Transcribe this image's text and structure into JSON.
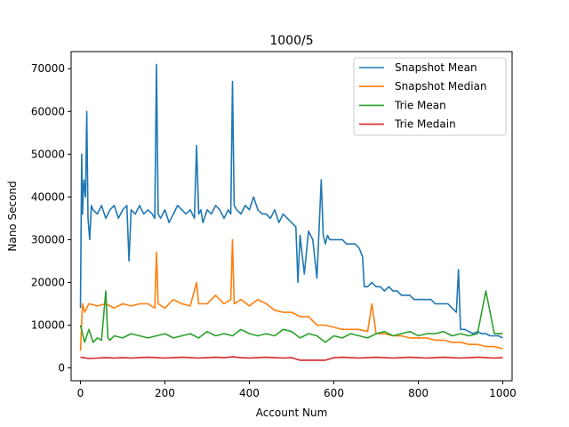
{
  "chart_data": {
    "type": "line",
    "title": "1000/5",
    "xlabel": "Account Num",
    "ylabel": "Nano Second",
    "xlim": [
      -22,
      1022
    ],
    "ylim": [
      -3000,
      74000
    ],
    "xticks": [
      0,
      200,
      400,
      600,
      800,
      1000
    ],
    "yticks": [
      0,
      10000,
      20000,
      30000,
      40000,
      50000,
      60000,
      70000
    ],
    "grid": false,
    "legend_position": "top-right",
    "series": [
      {
        "name": "Snapshot Mean",
        "color": "#1f77b4",
        "x": [
          0,
          3,
          5,
          8,
          12,
          15,
          18,
          22,
          26,
          30,
          40,
          50,
          60,
          70,
          80,
          90,
          100,
          110,
          115,
          120,
          130,
          140,
          150,
          160,
          170,
          176,
          180,
          184,
          190,
          200,
          210,
          220,
          230,
          240,
          250,
          260,
          270,
          275,
          280,
          285,
          290,
          300,
          310,
          320,
          330,
          340,
          350,
          356,
          360,
          364,
          370,
          380,
          390,
          400,
          410,
          420,
          430,
          440,
          450,
          460,
          470,
          480,
          490,
          500,
          510,
          515,
          520,
          530,
          540,
          550,
          560,
          570,
          575,
          580,
          585,
          590,
          600,
          610,
          620,
          630,
          640,
          650,
          660,
          668,
          672,
          680,
          690,
          700,
          710,
          720,
          730,
          740,
          750,
          760,
          770,
          780,
          790,
          800,
          810,
          820,
          830,
          840,
          850,
          860,
          870,
          880,
          890,
          895,
          900,
          910,
          920,
          930,
          940,
          950,
          960,
          970,
          980,
          990,
          1000
        ],
        "values": [
          14000,
          50000,
          36000,
          44000,
          40000,
          60000,
          35000,
          30000,
          38000,
          37000,
          36000,
          38000,
          35000,
          37000,
          38000,
          35000,
          37000,
          38000,
          25000,
          37000,
          36000,
          38000,
          36000,
          37000,
          36000,
          35000,
          71000,
          36000,
          35000,
          37000,
          34000,
          36000,
          38000,
          37000,
          36000,
          37000,
          35000,
          52000,
          36000,
          37000,
          34000,
          37000,
          36000,
          38000,
          37000,
          35000,
          37000,
          36000,
          67000,
          38000,
          37000,
          36000,
          38000,
          37000,
          40000,
          37000,
          36000,
          36000,
          35000,
          37000,
          34000,
          36000,
          35000,
          34000,
          33000,
          20000,
          31000,
          22000,
          32000,
          30000,
          21000,
          44000,
          31000,
          29000,
          31000,
          30000,
          30000,
          30000,
          30000,
          29000,
          29000,
          29000,
          28000,
          26000,
          19000,
          19000,
          20000,
          19000,
          19000,
          18000,
          19000,
          18000,
          18000,
          17000,
          17000,
          17000,
          16000,
          16000,
          16000,
          16000,
          16000,
          15000,
          15000,
          15000,
          15000,
          14000,
          13000,
          23000,
          9000,
          9000,
          8500,
          8000,
          8500,
          8000,
          8000,
          7500,
          7500,
          7500,
          7000
        ]
      },
      {
        "name": "Snapshot Median",
        "color": "#ff7f0e",
        "x": [
          0,
          5,
          10,
          20,
          40,
          60,
          80,
          100,
          120,
          140,
          160,
          176,
          180,
          184,
          200,
          220,
          240,
          260,
          275,
          280,
          300,
          320,
          340,
          356,
          360,
          364,
          380,
          400,
          420,
          440,
          460,
          480,
          500,
          520,
          540,
          560,
          580,
          600,
          620,
          640,
          660,
          680,
          690,
          700,
          720,
          740,
          760,
          780,
          800,
          820,
          840,
          850,
          860,
          880,
          900,
          920,
          940,
          960,
          980,
          1000
        ],
        "values": [
          4000,
          15000,
          13000,
          15000,
          14500,
          15000,
          14000,
          15000,
          14500,
          15000,
          15000,
          14000,
          27000,
          15000,
          14000,
          16000,
          15000,
          14500,
          20000,
          15000,
          15000,
          17000,
          15000,
          16000,
          30000,
          15000,
          16000,
          14500,
          16000,
          15000,
          13500,
          13000,
          13000,
          12000,
          12000,
          10000,
          10000,
          9500,
          9000,
          9000,
          9000,
          8500,
          15000,
          8000,
          8000,
          7500,
          7500,
          7000,
          7000,
          7000,
          6500,
          6500,
          6500,
          6000,
          6000,
          5500,
          5500,
          5000,
          5000,
          4500
        ]
      },
      {
        "name": "Trie Mean",
        "color": "#2ca02c",
        "x": [
          0,
          10,
          20,
          30,
          40,
          50,
          60,
          65,
          70,
          80,
          100,
          120,
          140,
          160,
          180,
          200,
          220,
          240,
          260,
          280,
          300,
          320,
          340,
          360,
          380,
          400,
          420,
          440,
          460,
          480,
          500,
          520,
          540,
          560,
          580,
          600,
          620,
          640,
          660,
          680,
          700,
          720,
          740,
          760,
          780,
          800,
          820,
          840,
          860,
          880,
          900,
          920,
          940,
          960,
          980,
          1000
        ],
        "values": [
          10000,
          6000,
          9000,
          6000,
          7000,
          6500,
          18000,
          7000,
          6500,
          7500,
          7000,
          8000,
          7500,
          7000,
          7500,
          8000,
          7000,
          7500,
          8000,
          7000,
          8500,
          7500,
          8000,
          7500,
          9000,
          8000,
          7500,
          8000,
          7500,
          9000,
          8500,
          7000,
          8000,
          7500,
          6000,
          7500,
          7000,
          8000,
          7500,
          7000,
          8000,
          8500,
          7500,
          8000,
          8500,
          7500,
          8000,
          8000,
          8500,
          7500,
          8000,
          7500,
          8000,
          18000,
          8000,
          8000
        ]
      },
      {
        "name": "Trie Medain",
        "color": "#d62728",
        "x": [
          0,
          20,
          40,
          60,
          80,
          100,
          120,
          140,
          160,
          180,
          200,
          220,
          240,
          260,
          280,
          300,
          320,
          340,
          360,
          380,
          400,
          420,
          440,
          460,
          480,
          500,
          520,
          540,
          560,
          580,
          600,
          620,
          640,
          660,
          680,
          700,
          720,
          740,
          760,
          780,
          800,
          820,
          840,
          860,
          880,
          900,
          920,
          940,
          960,
          980,
          1000
        ],
        "values": [
          2500,
          2200,
          2300,
          2400,
          2300,
          2400,
          2300,
          2400,
          2500,
          2400,
          2300,
          2400,
          2500,
          2400,
          2300,
          2400,
          2500,
          2400,
          2600,
          2400,
          2300,
          2400,
          2500,
          2400,
          2300,
          2400,
          1800,
          1800,
          1800,
          1800,
          2400,
          2500,
          2400,
          2300,
          2400,
          2500,
          2400,
          2300,
          2400,
          2500,
          2400,
          2300,
          2400,
          2500,
          2400,
          2300,
          2400,
          2500,
          2400,
          2300,
          2400
        ]
      }
    ]
  }
}
